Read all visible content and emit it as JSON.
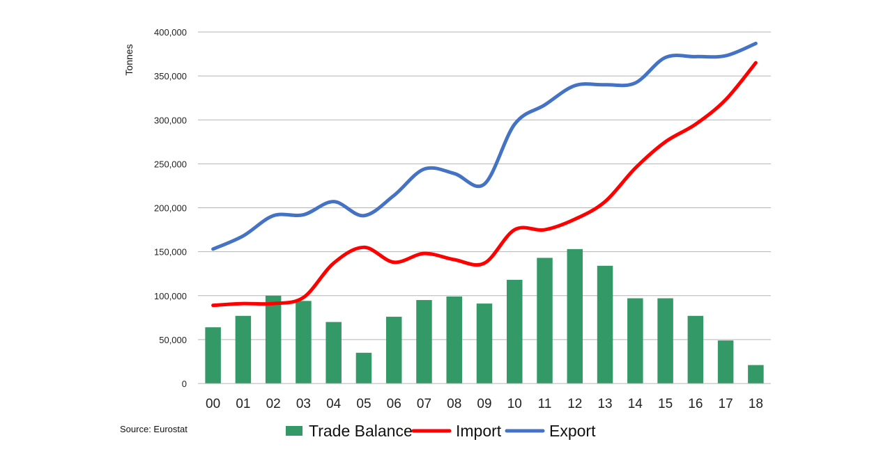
{
  "source": "Source:  Eurostat",
  "chart_data": {
    "type": "bar",
    "title": "",
    "xlabel": "",
    "ylabel": "Tonnes",
    "ylim": [
      0,
      400000
    ],
    "yticks": [
      0,
      50000,
      100000,
      150000,
      200000,
      250000,
      300000,
      350000,
      400000
    ],
    "ytick_labels": [
      "0",
      "50,000",
      "100,000",
      "150,000",
      "200,000",
      "250,000",
      "300,000",
      "350,000",
      "400,000"
    ],
    "grid": true,
    "legend": "bottom",
    "categories": [
      "00",
      "01",
      "02",
      "03",
      "04",
      "05",
      "06",
      "07",
      "08",
      "09",
      "10",
      "11",
      "12",
      "13",
      "14",
      "15",
      "16",
      "17",
      "18"
    ],
    "series": [
      {
        "name": "Trade Balance",
        "type": "bar",
        "color": "#339966",
        "values": [
          64000,
          77000,
          100000,
          94000,
          70000,
          35000,
          76000,
          95000,
          99000,
          91000,
          118000,
          143000,
          153000,
          134000,
          97000,
          97000,
          77000,
          49000,
          21000
        ]
      },
      {
        "name": "Import",
        "type": "line",
        "color": "#ff0000",
        "values": [
          89000,
          91000,
          91000,
          98000,
          137000,
          155000,
          138000,
          148000,
          141000,
          137000,
          175000,
          175000,
          187000,
          207000,
          245000,
          275000,
          295000,
          323000,
          365000
        ]
      },
      {
        "name": "Export",
        "type": "line",
        "color": "#4472c4",
        "values": [
          153000,
          168000,
          191000,
          192000,
          207000,
          191000,
          214000,
          244000,
          239000,
          227000,
          295000,
          317000,
          339000,
          340000,
          342000,
          371000,
          372000,
          373000,
          387000
        ]
      }
    ]
  }
}
